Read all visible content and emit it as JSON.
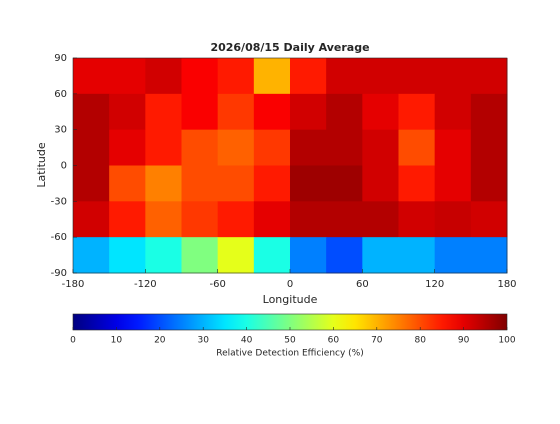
{
  "chart_data": {
    "type": "heatmap",
    "title": "2026/08/15 Daily Average",
    "xlabel": "Longitude",
    "ylabel": "Latitude",
    "xlim": [
      -180,
      180
    ],
    "ylim": [
      -90,
      90
    ],
    "xticks": [
      -180,
      -120,
      -60,
      0,
      60,
      120,
      180
    ],
    "yticks": [
      -90,
      -60,
      -30,
      0,
      30,
      60,
      90
    ],
    "x": [
      -165,
      -135,
      -105,
      -75,
      -45,
      -15,
      15,
      45,
      75,
      105,
      135,
      165
    ],
    "y": [
      75,
      45,
      15,
      -15,
      -45,
      -75
    ],
    "values": [
      [
        90,
        90,
        92,
        88,
        85,
        70,
        85,
        92,
        92,
        92,
        92,
        92
      ],
      [
        95,
        92,
        85,
        88,
        82,
        88,
        92,
        95,
        90,
        85,
        92,
        95
      ],
      [
        95,
        90,
        85,
        80,
        78,
        82,
        95,
        95,
        92,
        80,
        90,
        95
      ],
      [
        95,
        80,
        75,
        80,
        80,
        85,
        97,
        97,
        92,
        85,
        90,
        95
      ],
      [
        92,
        85,
        78,
        82,
        85,
        90,
        95,
        95,
        95,
        92,
        93,
        92
      ],
      [
        30,
        35,
        40,
        50,
        60,
        40,
        25,
        20,
        30,
        30,
        25,
        25
      ]
    ],
    "colormap": "jet",
    "clim": [
      0,
      100
    ],
    "cticks": [
      0,
      10,
      20,
      30,
      40,
      50,
      60,
      70,
      80,
      90,
      100
    ],
    "colorbar_label": "Relative Detection Efficiency (%)"
  }
}
